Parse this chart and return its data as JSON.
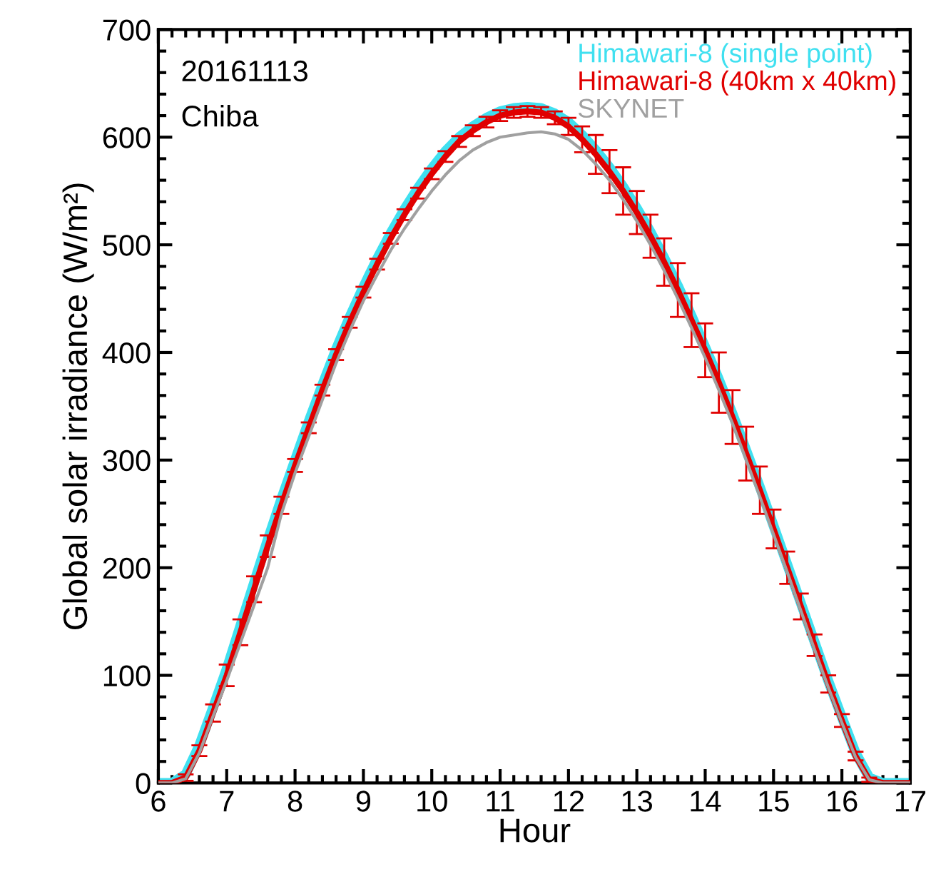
{
  "chart_data": {
    "type": "line",
    "xlabel": "Hour",
    "ylabel": "Global solar irradiance (W/m²)",
    "annotations": [
      "20161113",
      "Chiba"
    ],
    "x": [
      6.0,
      6.2,
      6.4,
      6.6,
      6.8,
      7.0,
      7.2,
      7.4,
      7.6,
      7.8,
      8.0,
      8.2,
      8.4,
      8.6,
      8.8,
      9.0,
      9.2,
      9.4,
      9.6,
      9.8,
      10.0,
      10.2,
      10.4,
      10.6,
      10.8,
      11.0,
      11.2,
      11.4,
      11.6,
      11.8,
      12.0,
      12.2,
      12.4,
      12.6,
      12.8,
      13.0,
      13.2,
      13.4,
      13.6,
      13.8,
      14.0,
      14.2,
      14.4,
      14.6,
      14.8,
      15.0,
      15.2,
      15.4,
      15.6,
      15.8,
      16.0,
      16.2,
      16.4,
      16.6,
      16.8,
      17.0
    ],
    "series": [
      {
        "name": "Himawari-8 (single point)",
        "color": "#40e0f0",
        "values": [
          0,
          0,
          8,
          35,
          70,
          106,
          146,
          186,
          226,
          264,
          300,
          336,
          370,
          403,
          433,
          461,
          487,
          511,
          533,
          553,
          571,
          587,
          600,
          610,
          618,
          624,
          627,
          628,
          627,
          622,
          614,
          602,
          588,
          572,
          554,
          534,
          512,
          488,
          462,
          434,
          405,
          375,
          343,
          309,
          275,
          239,
          203,
          167,
          131,
          95,
          61,
          28,
          5,
          0,
          0,
          0
        ]
      },
      {
        "name": "Himawari-8 (40km x 40km)",
        "color": "#e00000",
        "values": [
          0,
          0,
          5,
          30,
          65,
          100,
          140,
          180,
          220,
          258,
          295,
          330,
          365,
          398,
          428,
          456,
          482,
          506,
          528,
          548,
          566,
          582,
          596,
          606,
          614,
          620,
          623,
          624,
          623,
          618,
          610,
          598,
          584,
          568,
          550,
          530,
          508,
          484,
          458,
          430,
          402,
          372,
          340,
          306,
          272,
          236,
          200,
          164,
          128,
          92,
          58,
          25,
          3,
          0,
          0,
          0
        ],
        "errors": [
          0,
          0,
          3,
          5,
          8,
          10,
          12,
          12,
          10,
          8,
          6,
          5,
          5,
          5,
          5,
          5,
          5,
          5,
          5,
          5,
          5,
          5,
          5,
          5,
          5,
          5,
          5,
          5,
          5,
          6,
          8,
          12,
          18,
          20,
          22,
          20,
          20,
          22,
          25,
          25,
          25,
          28,
          25,
          25,
          22,
          18,
          15,
          12,
          10,
          8,
          6,
          4,
          2,
          0,
          0,
          0
        ]
      },
      {
        "name": "SKYNET",
        "color": "#a0a0a0",
        "values": [
          0,
          0,
          4,
          28,
          62,
          95,
          130,
          165,
          200,
          250,
          288,
          322,
          356,
          390,
          420,
          448,
          472,
          495,
          515,
          533,
          550,
          565,
          578,
          588,
          595,
          600,
          602,
          604,
          605,
          603,
          598,
          588,
          575,
          560,
          542,
          522,
          500,
          476,
          450,
          423,
          395,
          365,
          334,
          300,
          266,
          231,
          196,
          160,
          124,
          89,
          56,
          24,
          3,
          0,
          0,
          0
        ]
      }
    ],
    "xlim": [
      6,
      17
    ],
    "ylim": [
      0,
      700
    ],
    "xticks": [
      6,
      7,
      8,
      9,
      10,
      11,
      12,
      13,
      14,
      15,
      16,
      17
    ],
    "yticks": [
      0,
      100,
      200,
      300,
      400,
      500,
      600,
      700
    ],
    "legend": "top right",
    "grid": false,
    "marker": "none",
    "line_style": "solid"
  }
}
